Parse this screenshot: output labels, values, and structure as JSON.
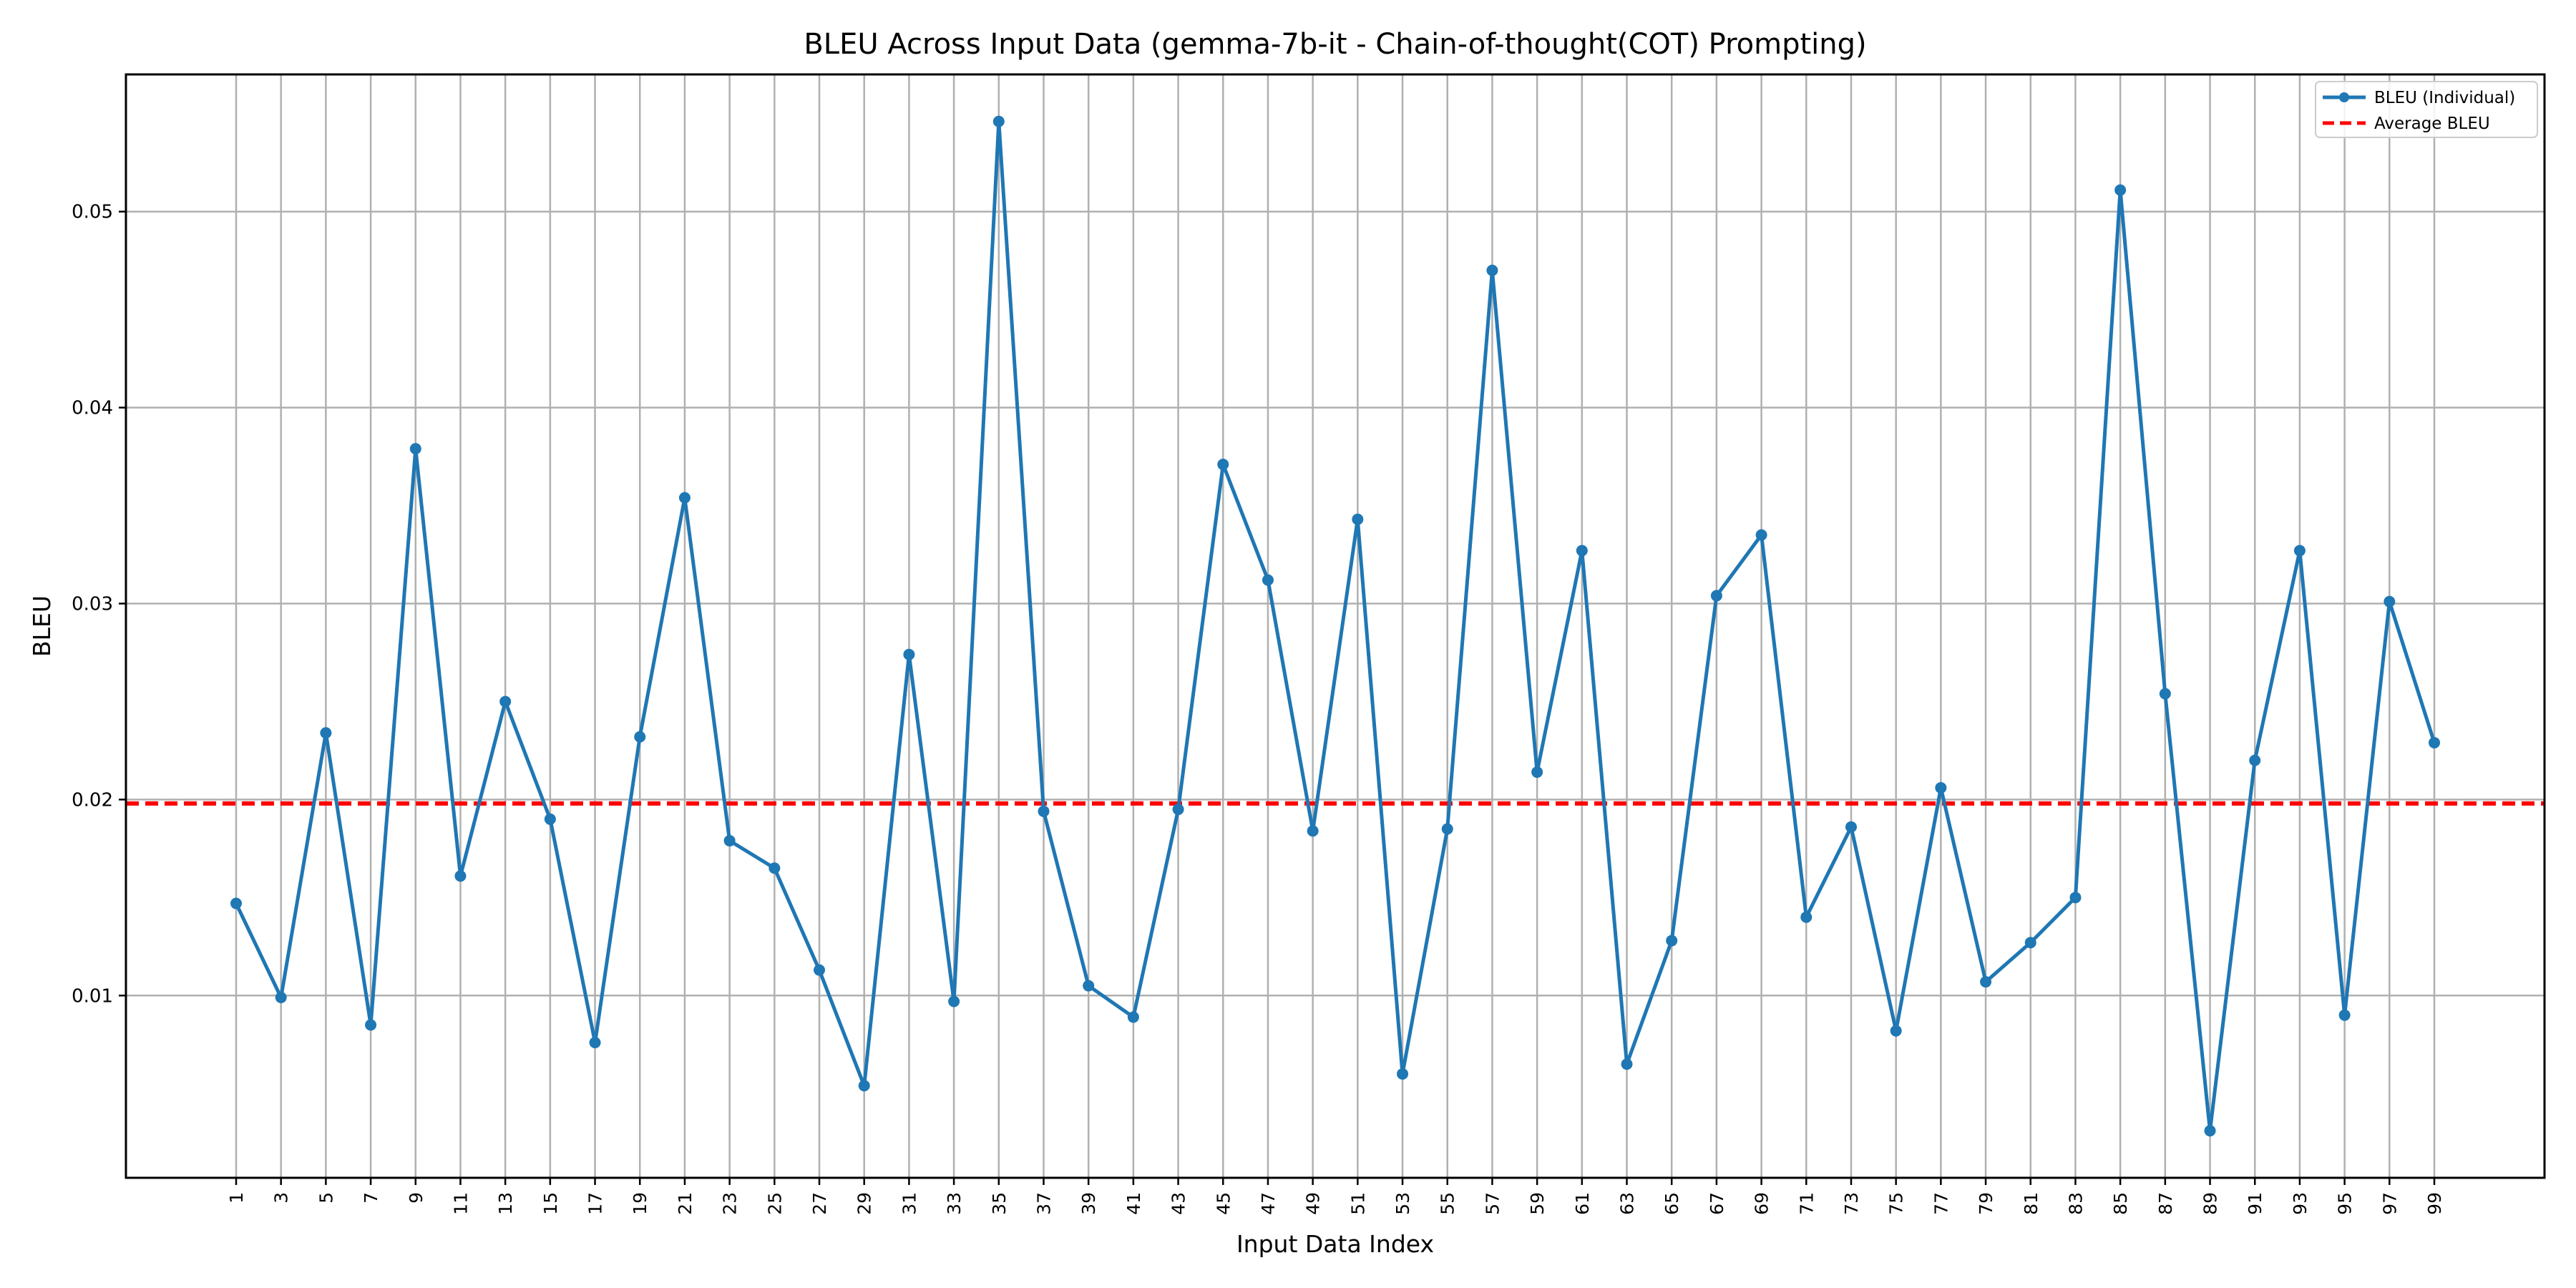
{
  "chart_data": {
    "type": "line",
    "title": "BLEU Across Input Data (gemma-7b-it - Chain-of-thought(COT) Prompting)",
    "xlabel": "Input Data Index",
    "ylabel": "BLEU",
    "x_tick_labels": [
      "1",
      "3",
      "5",
      "7",
      "9",
      "11",
      "13",
      "15",
      "17",
      "19",
      "21",
      "23",
      "25",
      "27",
      "29",
      "31",
      "33",
      "35",
      "37",
      "39",
      "41",
      "43",
      "45",
      "47",
      "49",
      "51",
      "53",
      "55",
      "57",
      "59",
      "61",
      "63",
      "65",
      "67",
      "69",
      "71",
      "73",
      "75",
      "77",
      "79",
      "81",
      "83",
      "85",
      "87",
      "89",
      "91",
      "93",
      "95",
      "97",
      "99"
    ],
    "y_ticks": [
      "0.01",
      "0.02",
      "0.03",
      "0.04",
      "0.05"
    ],
    "ylim": [
      0.0007,
      0.057
    ],
    "grid": true,
    "legend_position": "top-right",
    "colors": {
      "series": "#1f77b4",
      "average": "#ff0000",
      "grid": "#b0b0b0"
    },
    "series": [
      {
        "name": "BLEU (Individual)",
        "x": [
          1,
          3,
          5,
          7,
          9,
          11,
          13,
          15,
          17,
          19,
          21,
          23,
          25,
          27,
          29,
          31,
          33,
          35,
          37,
          39,
          41,
          43,
          45,
          47,
          49,
          51,
          53,
          55,
          57,
          59,
          61,
          63,
          65,
          67,
          69,
          71,
          73,
          75,
          77,
          79,
          81,
          83,
          85,
          87,
          89,
          91,
          93,
          95,
          97,
          99
        ],
        "values": [
          0.0147,
          0.0099,
          0.0234,
          0.0085,
          0.0379,
          0.0161,
          0.025,
          0.019,
          0.0076,
          0.0232,
          0.0354,
          0.0179,
          0.0165,
          0.0113,
          0.0054,
          0.0274,
          0.0097,
          0.0546,
          0.0194,
          0.0105,
          0.0089,
          0.0195,
          0.0371,
          0.0312,
          0.0184,
          0.0343,
          0.006,
          0.0185,
          0.047,
          0.0214,
          0.0327,
          0.0065,
          0.0128,
          0.0304,
          0.0335,
          0.014,
          0.0186,
          0.0082,
          0.0206,
          0.0107,
          0.0127,
          0.015,
          0.0511,
          0.0254,
          0.0031,
          0.022,
          0.0327,
          0.009,
          0.0301,
          0.0229
        ]
      }
    ],
    "average": {
      "name": "Average BLEU",
      "value": 0.0198
    }
  }
}
